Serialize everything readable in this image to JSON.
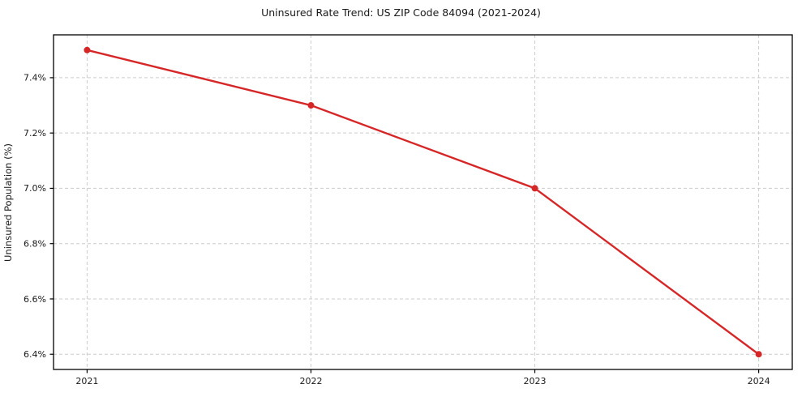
{
  "chart_data": {
    "type": "line",
    "title": "Uninsured Rate Trend: US ZIP Code 84094 (2021-2024)",
    "xlabel": "",
    "ylabel": "Uninsured Population (%)",
    "x": [
      2021,
      2022,
      2023,
      2024
    ],
    "xtick_labels": [
      "2021",
      "2022",
      "2023",
      "2024"
    ],
    "series": [
      {
        "name": "uninsured-rate",
        "values": [
          7.5,
          7.3,
          7.0,
          6.4
        ],
        "color": "#d62728",
        "marker": "circle"
      }
    ],
    "yticks": [
      6.4,
      6.6,
      6.8,
      7.0,
      7.2,
      7.4
    ],
    "ytick_labels": [
      "6.4%",
      "6.6%",
      "6.8%",
      "7.0%",
      "7.2%",
      "7.4%"
    ],
    "xlim": [
      2020.85,
      2024.15
    ],
    "ylim": [
      6.345,
      7.555
    ],
    "grid": true,
    "grid_style": "dashed",
    "legend": false,
    "colors": {
      "line": "#d62728",
      "grid": "#cccccc",
      "axis_border": "#000000",
      "tick": "#000000",
      "text": "#1a1a1a",
      "background": "#ffffff"
    }
  }
}
